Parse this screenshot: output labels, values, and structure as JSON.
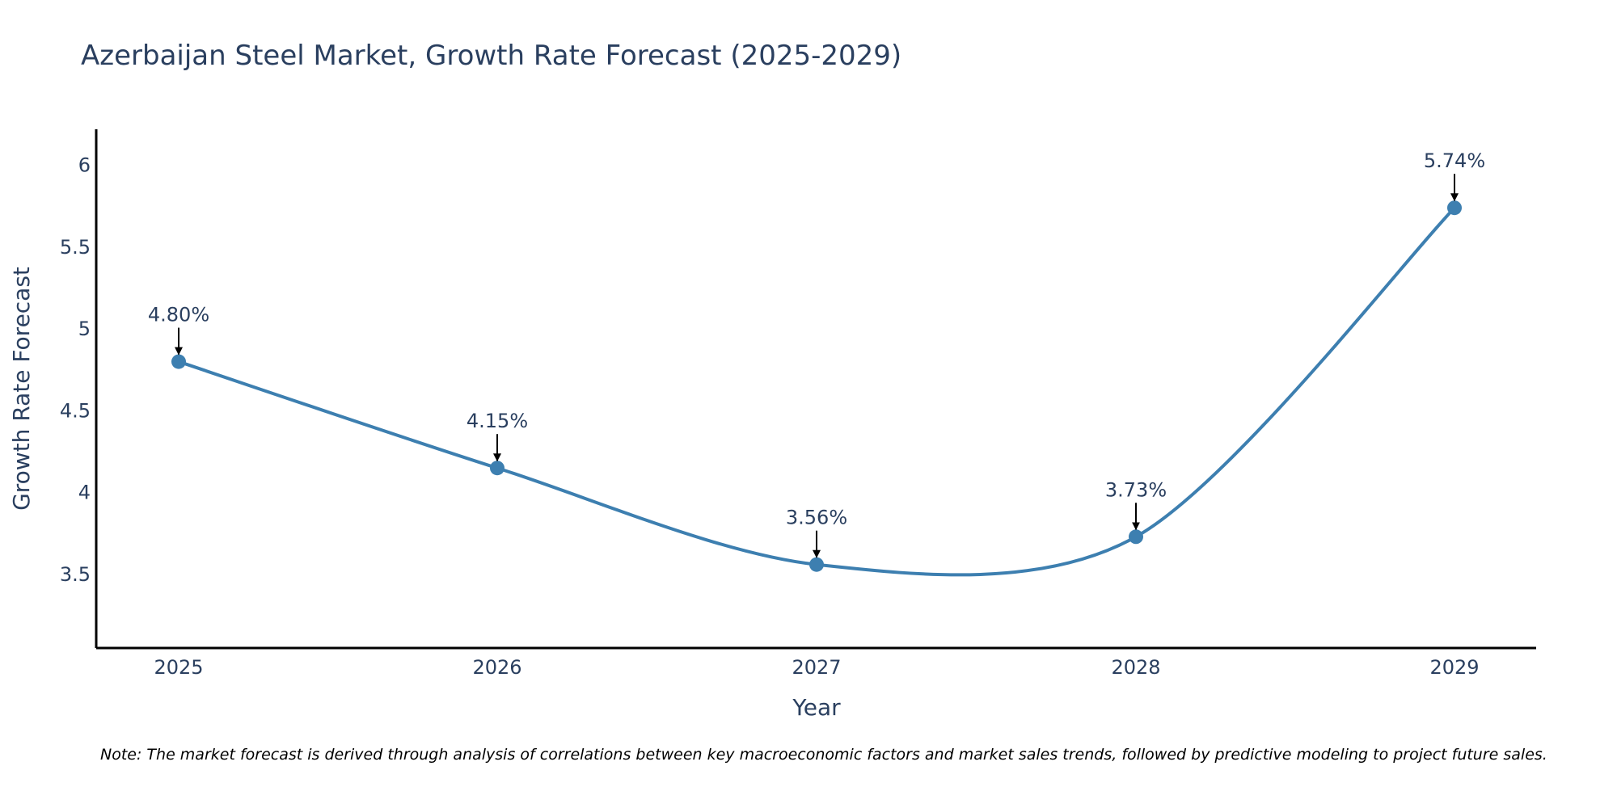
{
  "chart_data": {
    "type": "line",
    "title": "Azerbaijan Steel Market, Growth Rate Forecast (2025-2029)",
    "xlabel": "Year",
    "ylabel": "Growth Rate Forecast",
    "categories": [
      "2025",
      "2026",
      "2027",
      "2028",
      "2029"
    ],
    "values": [
      4.8,
      4.15,
      3.56,
      3.73,
      5.74
    ],
    "data_labels": [
      "4.80%",
      "4.15%",
      "3.56%",
      "3.73%",
      "5.74%"
    ],
    "y_ticks": [
      3.5,
      4,
      4.5,
      5,
      5.5,
      6
    ],
    "y_tick_labels": [
      "3.5",
      "4",
      "4.5",
      "5",
      "5.5",
      "6"
    ],
    "ylim": [
      3.05,
      6.22
    ],
    "line_shape": "spline",
    "grid": false,
    "legend": "none",
    "line_color": "#3d7fb0",
    "marker_color": "#3d7fb0",
    "arrow_color": "#000000",
    "note": "Note: The market forecast is derived through analysis of correlations between key macroeconomic factors and market sales trends, followed by predictive modeling to project future sales."
  }
}
